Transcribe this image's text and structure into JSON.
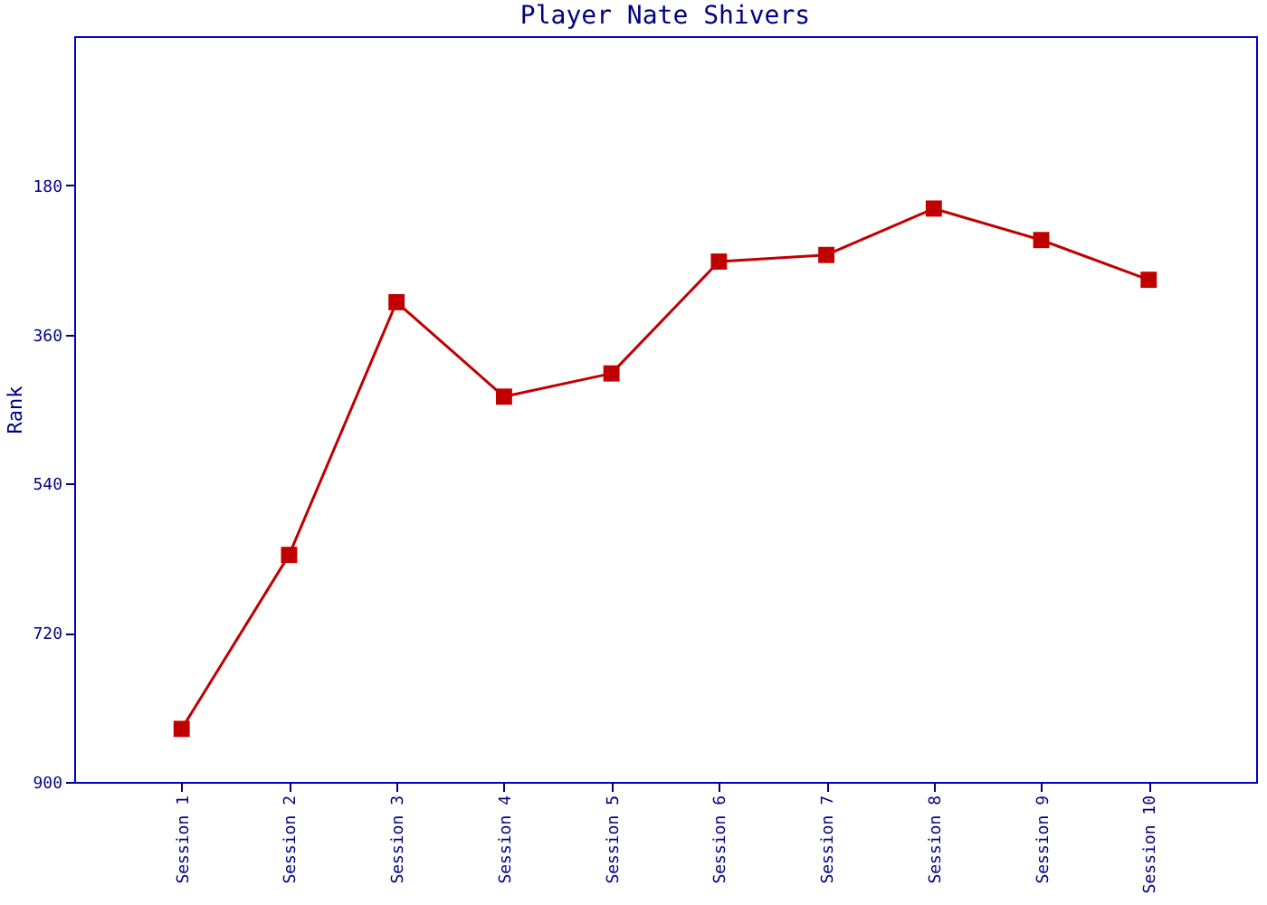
{
  "chart_data": {
    "type": "line",
    "title": "Player Nate Shivers",
    "ylabel": "Rank",
    "categories": [
      "Session 1",
      "Session 2",
      "Session 3",
      "Session 4",
      "Session 5",
      "Session 6",
      "Session 7",
      "Session 8",
      "Session 9",
      "Session 10"
    ],
    "series": [
      {
        "color": "#c00000",
        "values": [
          836,
          626,
          321,
          435,
          407,
          272,
          264,
          208,
          246,
          294
        ]
      }
    ],
    "ylim": [
      900,
      0
    ],
    "yticks": [
      180,
      360,
      540,
      720,
      900
    ],
    "grid": false,
    "marker": "square",
    "line_style": "solid"
  }
}
